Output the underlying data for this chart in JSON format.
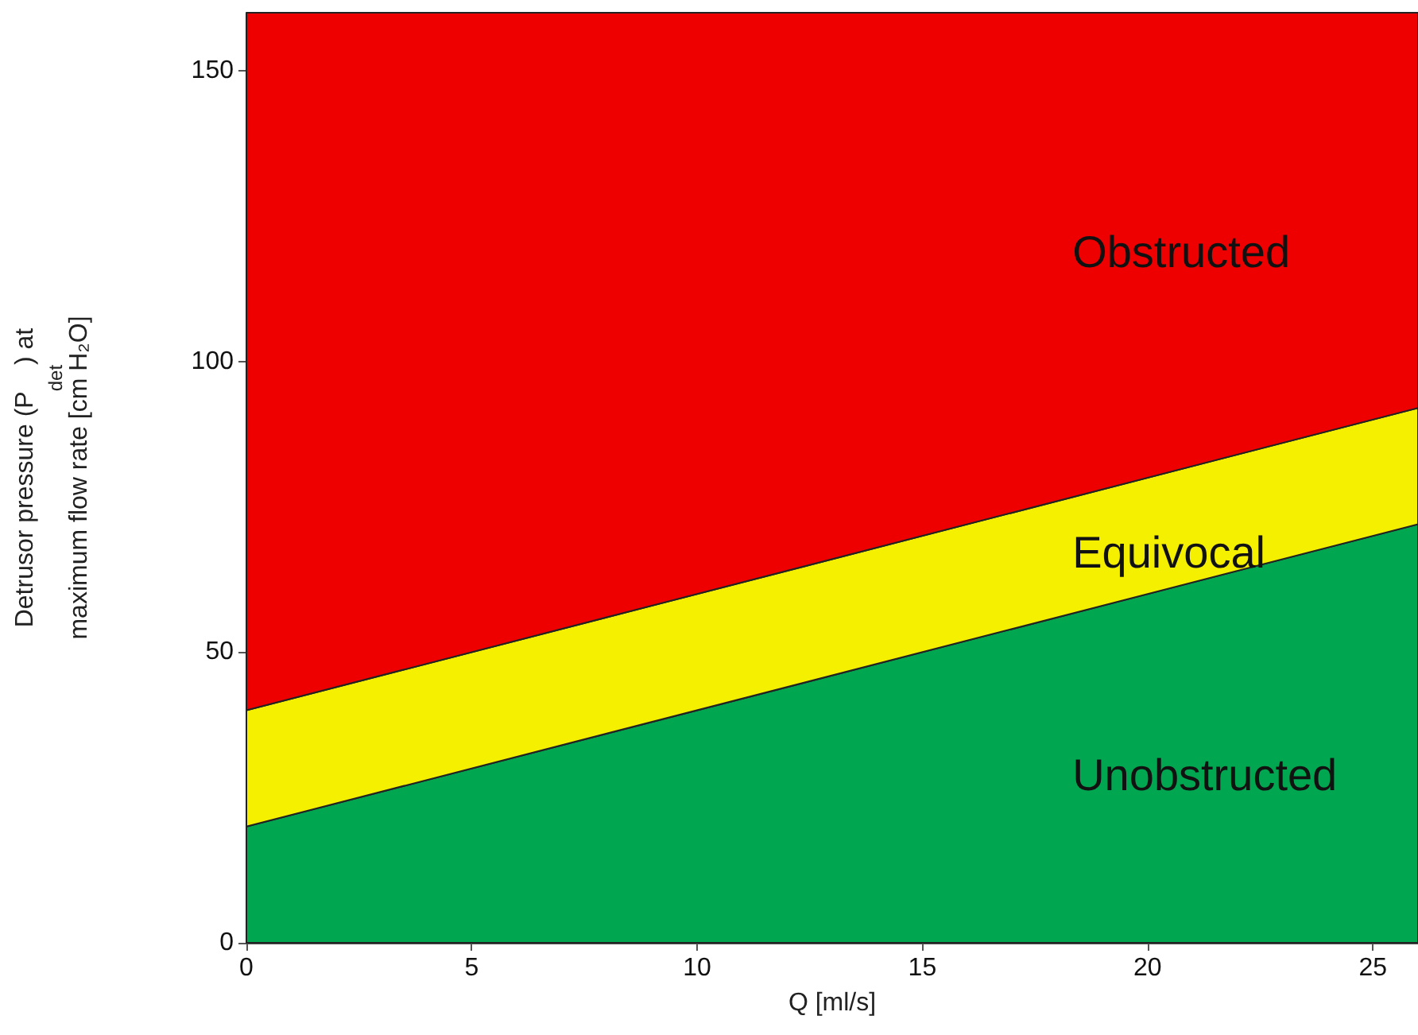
{
  "chart_data": {
    "type": "area",
    "xlabel": "Q [ml/s]",
    "ylabel": "Detrusor pressure (P$_{det}$) at maximum flow rate [cm H₂O]",
    "x": [
      0,
      26
    ],
    "stacked": true,
    "series": [
      {
        "name": "Unobstructed",
        "color": "#00a650",
        "values": [
          20,
          72
        ]
      },
      {
        "name": "Equivocal",
        "color": "#f5f000",
        "values": [
          20,
          20
        ]
      },
      {
        "name": "Obstructed",
        "color": "#ee0000",
        "values": [
          120,
          68
        ]
      }
    ],
    "xlim": [
      0,
      26
    ],
    "xticks": [
      0,
      5,
      10,
      15,
      20,
      25
    ],
    "ylim": [
      0,
      160
    ],
    "yticks": [
      0,
      50,
      100,
      150
    ]
  }
}
